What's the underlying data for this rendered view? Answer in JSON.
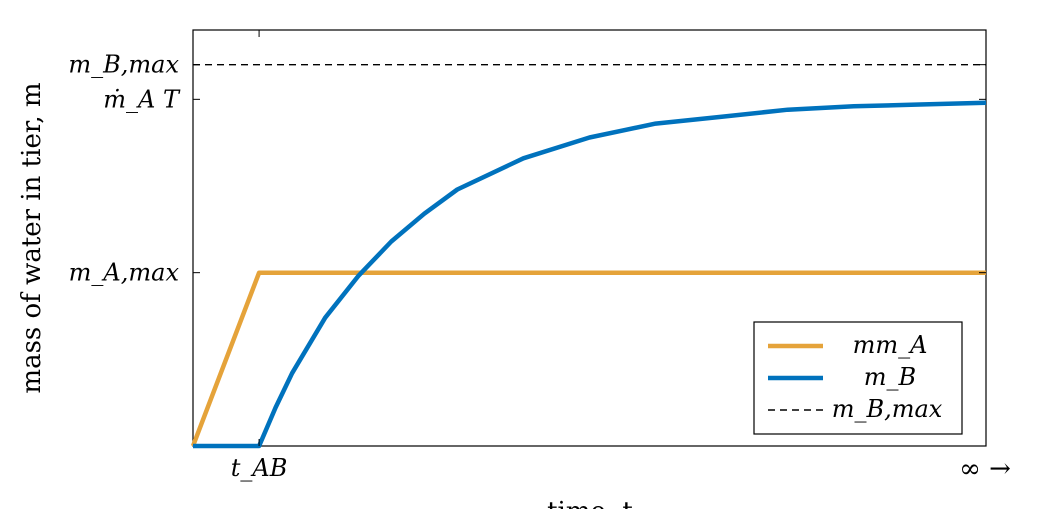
{
  "chart_data": {
    "type": "line",
    "title": "",
    "xlabel": "time, t",
    "ylabel": "mass of water in tier, m",
    "xlim": [
      0,
      12
    ],
    "ylim": [
      0,
      1.2
    ],
    "x_ticks": [
      {
        "value": 1,
        "label": "t_AB"
      }
    ],
    "x_end_label": "∞ →",
    "y_ticks": [
      {
        "value": 0.5,
        "label": "m_A,max"
      },
      {
        "value": 1.0,
        "label": "ṁ_A T"
      },
      {
        "value": 1.1,
        "label": "m_B,max"
      }
    ],
    "series": [
      {
        "name": "m_A",
        "color": "#E5A33A",
        "style": "solid",
        "x": [
          0,
          1,
          12
        ],
        "y": [
          0,
          0.5,
          0.5
        ]
      },
      {
        "name": "m_B",
        "color": "#0072BD",
        "style": "solid",
        "x": [
          0,
          1,
          1.25,
          1.5,
          2,
          2.5,
          3,
          3.5,
          4,
          5,
          6,
          7,
          8,
          9,
          10,
          11,
          12
        ],
        "y": [
          0,
          0,
          0.111,
          0.21,
          0.37,
          0.49,
          0.59,
          0.67,
          0.74,
          0.83,
          0.89,
          0.93,
          0.95,
          0.97,
          0.98,
          0.985,
          0.99
        ]
      },
      {
        "name": "m_B,max",
        "color": "#000000",
        "style": "dashed",
        "x": [
          0,
          12
        ],
        "y": [
          1.1,
          1.1
        ]
      }
    ],
    "grid": false,
    "legend_position": "bottom-right"
  }
}
